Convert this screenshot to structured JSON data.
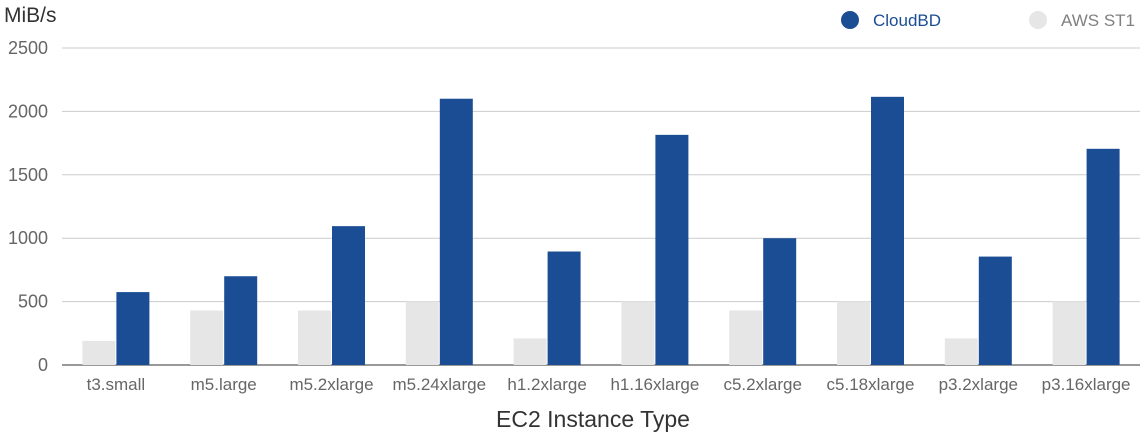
{
  "chart_data": {
    "type": "bar",
    "title": "",
    "xlabel": "EC2 Instance Type",
    "ylabel": "MiB/s",
    "ylim": [
      0,
      2500
    ],
    "yticks": [
      0,
      500,
      1000,
      1500,
      2000,
      2500
    ],
    "grid": true,
    "legend_position": "top-right",
    "categories": [
      "t3.small",
      "m5.large",
      "m5.2xlarge",
      "m5.24xlarge",
      "h1.2xlarge",
      "h1.16xlarge",
      "c5.2xlarge",
      "c5.18xlarge",
      "p3.2xlarge",
      "p3.16xlarge"
    ],
    "series": [
      {
        "name": "AWS ST1",
        "color": "#e6e6e6",
        "values": [
          190,
          430,
          430,
          500,
          210,
          500,
          430,
          500,
          210,
          500
        ]
      },
      {
        "name": "CloudBD",
        "color": "#1a4d94",
        "values": [
          575,
          700,
          1095,
          2100,
          895,
          1815,
          1000,
          2115,
          855,
          1705
        ]
      }
    ],
    "legend_text_colors": {
      "CloudBD": "#1a4d94",
      "AWS ST1": "#808080"
    }
  }
}
